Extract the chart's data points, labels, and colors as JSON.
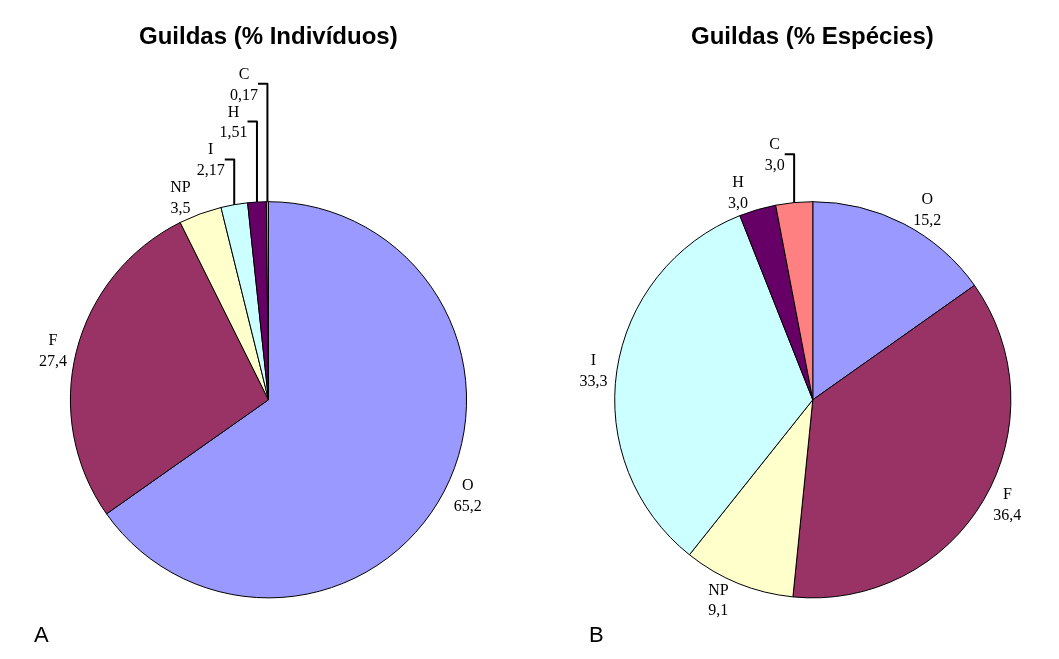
{
  "chart_data": [
    {
      "type": "pie",
      "title": "Guildas (% Indivíduos)",
      "categories": [
        "O",
        "F",
        "NP",
        "I",
        "H",
        "C"
      ],
      "values": [
        65.2,
        27.4,
        3.5,
        2.17,
        1.51,
        0.17
      ],
      "value_labels": [
        "65,2",
        "27,4",
        "3,5",
        "2,17",
        "1,51",
        "0,17"
      ],
      "colors": [
        "#9999ff",
        "#993366",
        "#ffffcc",
        "#ccffff",
        "#660066",
        "#ff8080"
      ],
      "annotations": [
        "A"
      ],
      "legend": false
    },
    {
      "type": "pie",
      "title": "Guildas (% Espécies)",
      "categories": [
        "O",
        "F",
        "NP",
        "I",
        "H",
        "C"
      ],
      "values": [
        15.2,
        36.4,
        9.1,
        33.3,
        3.0,
        3.0
      ],
      "value_labels": [
        "15,2",
        "36,4",
        "9,1",
        "33,3",
        "3,0",
        "3,0"
      ],
      "colors": [
        "#9999ff",
        "#993366",
        "#ffffcc",
        "#ccffff",
        "#660066",
        "#ff8080"
      ],
      "annotations": [
        "B"
      ],
      "legend": false
    }
  ]
}
